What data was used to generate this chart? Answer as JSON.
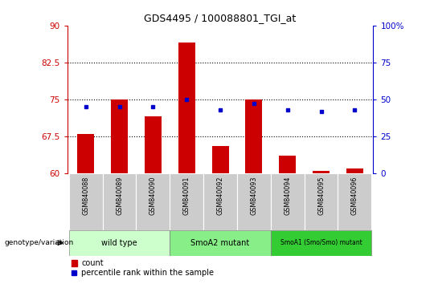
{
  "title": "GDS4495 / 100088801_TGI_at",
  "samples": [
    "GSM840088",
    "GSM840089",
    "GSM840090",
    "GSM840091",
    "GSM840092",
    "GSM840093",
    "GSM840094",
    "GSM840095",
    "GSM840096"
  ],
  "bar_values": [
    68.0,
    75.0,
    71.5,
    86.5,
    65.5,
    75.0,
    63.5,
    60.5,
    61.0
  ],
  "percentile_values": [
    45,
    45,
    45,
    50,
    43,
    47,
    43,
    42,
    43
  ],
  "bar_bottom": 60,
  "ylim_left": [
    60,
    90
  ],
  "ylim_right": [
    0,
    100
  ],
  "yticks_left": [
    60,
    67.5,
    75,
    82.5,
    90
  ],
  "yticks_right": [
    0,
    25,
    50,
    75,
    100
  ],
  "ytick_labels_left": [
    "60",
    "67.5",
    "75",
    "82.5",
    "90"
  ],
  "ytick_labels_right": [
    "0",
    "25",
    "50",
    "75",
    "100%"
  ],
  "hlines": [
    67.5,
    75,
    82.5
  ],
  "bar_color": "#cc0000",
  "dot_color": "#0000cc",
  "bar_width": 0.5,
  "groups": [
    {
      "label": "wild type",
      "color": "#ccffcc",
      "start": 0,
      "end": 2
    },
    {
      "label": "SmoA2 mutant",
      "color": "#88ee88",
      "start": 3,
      "end": 5
    },
    {
      "label": "SmoA1 (Smo/Smo) mutant",
      "color": "#33cc33",
      "start": 6,
      "end": 8
    }
  ],
  "legend_count_label": "count",
  "legend_percentile_label": "percentile rank within the sample",
  "genotype_label": "genotype/variation",
  "tick_bg_color": "#cccccc",
  "plot_bg_color": "#ffffff",
  "left_axis_color": "#cc0000",
  "right_axis_color": "#0000cc"
}
